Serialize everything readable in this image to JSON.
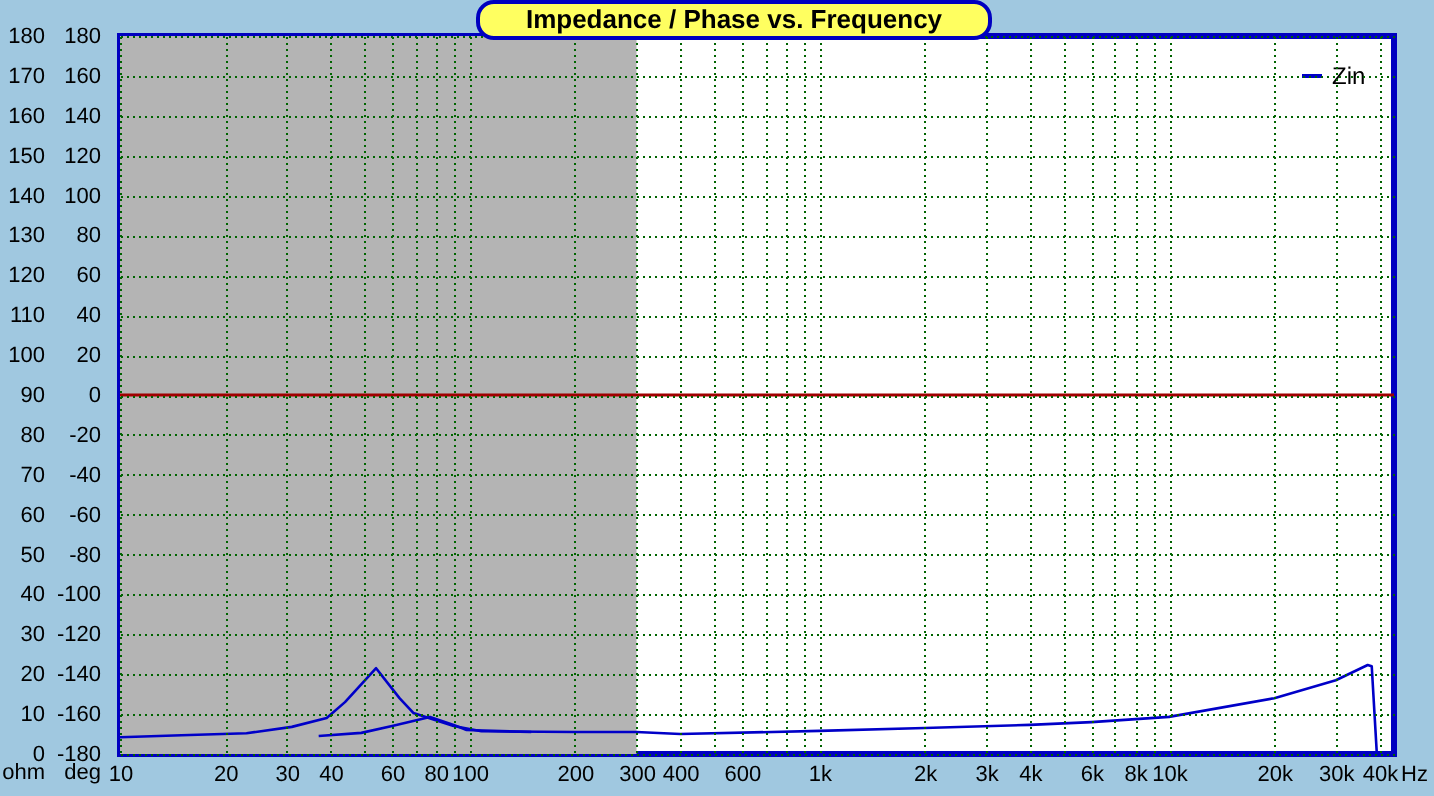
{
  "chart_data": {
    "type": "line",
    "title": "Impedance / Phase vs. Frequency",
    "ylabel": "deg",
    "y2label": "ohm",
    "xlabel": "Hz",
    "log": "x",
    "grid": true,
    "legend": "top right",
    "marker": "none",
    "line_style": "solid",
    "xlim": [
      10,
      44000
    ],
    "ylim": [
      -180,
      180
    ],
    "y2lim": [
      0,
      180
    ],
    "xticks": [
      10,
      20,
      30,
      40,
      {
        "value": 50,
        "label": null
      },
      60,
      {
        "value": 70,
        "label": null
      },
      80,
      {
        "value": 90,
        "label": null
      },
      100,
      200,
      300,
      400,
      {
        "value": 500,
        "label": null
      },
      600,
      {
        "value": 700,
        "label": null
      },
      {
        "value": 800,
        "label": null
      },
      {
        "value": 900,
        "label": null
      },
      {
        "value": 1000,
        "label": "1k"
      },
      {
        "value": 2000,
        "label": "2k"
      },
      {
        "value": 3000,
        "label": "3k"
      },
      {
        "value": 4000,
        "label": "4k"
      },
      {
        "value": 5000,
        "label": null
      },
      {
        "value": 6000,
        "label": "6k"
      },
      {
        "value": 7000,
        "label": null
      },
      {
        "value": 8000,
        "label": "8k"
      },
      {
        "value": 9000,
        "label": null
      },
      {
        "value": 10000,
        "label": "10k"
      },
      {
        "value": 20000,
        "label": "20k"
      },
      {
        "value": 30000,
        "label": "30k"
      },
      {
        "value": 40000,
        "label": "40k"
      }
    ],
    "yticks": [
      -180,
      -160,
      -140,
      -120,
      -100,
      -80,
      -60,
      -40,
      -20,
      0,
      20,
      40,
      60,
      80,
      100,
      120,
      140,
      160,
      180
    ],
    "y2ticks": [
      0,
      10,
      20,
      30,
      40,
      50,
      60,
      70,
      80,
      90,
      100,
      110,
      120,
      130,
      140,
      150,
      160,
      170,
      180
    ],
    "bands": [
      {
        "axis": "x",
        "from": 10,
        "to": 300,
        "color": "#b4b4b4"
      }
    ],
    "ref_lines": [
      {
        "axis": "y",
        "value": 0,
        "color": "#a00000"
      }
    ],
    "series": [
      {
        "name": "Zin",
        "color": "#0000c8",
        "axis": "y2",
        "x": [
          10,
          15,
          23,
          31,
          39,
          44,
          54,
          63,
          69,
          90,
          108,
          200,
          300,
          400,
          1000,
          2000,
          4000,
          6000,
          10000,
          20000,
          30000,
          37000,
          38000,
          39300
        ],
        "values": [
          4.2,
          4.7,
          5.2,
          6.8,
          9,
          13,
          21.5,
          14,
          10.3,
          7,
          5.7,
          5.5,
          5.5,
          5,
          5.8,
          6.5,
          7.3,
          8,
          9.3,
          14,
          18.5,
          22.3,
          22,
          0
        ]
      },
      {
        "color": "#0000c8",
        "axis": "y2",
        "x": [
          37,
          49,
          60,
          77,
          90,
          98,
          150
        ],
        "values": [
          4.5,
          5.3,
          7,
          9.3,
          7.3,
          6,
          5.5
        ]
      }
    ]
  }
}
